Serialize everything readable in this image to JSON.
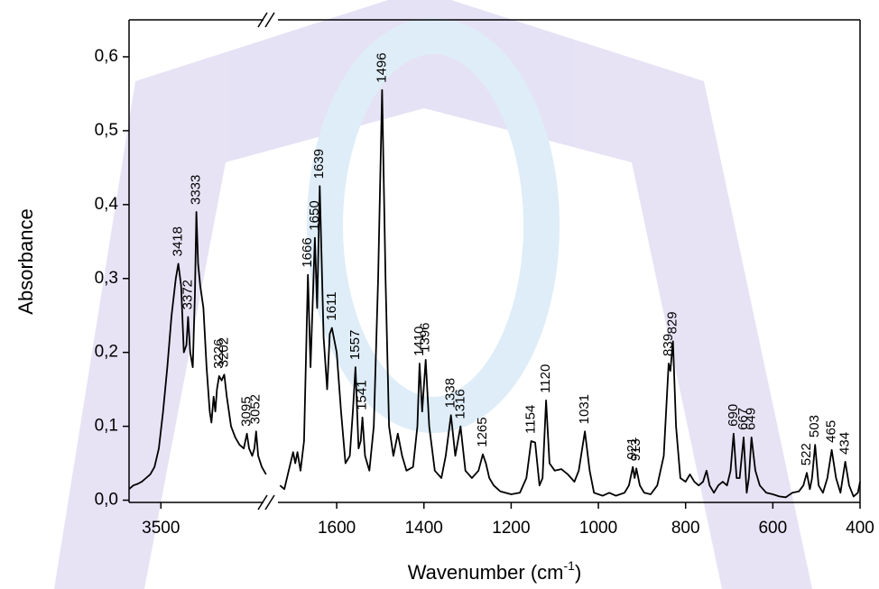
{
  "chart_data": {
    "type": "line",
    "ylabel": "Absorbance",
    "xlabel_parts": [
      "Wavenumber (cm",
      "-1",
      ")"
    ],
    "color": "#000000",
    "ylim": [
      -0.003,
      0.65
    ],
    "yticks": [
      {
        "value": 0,
        "label": "0,0"
      },
      {
        "value": 0.1,
        "label": "0,1"
      },
      {
        "value": 0.2,
        "label": "0,2"
      },
      {
        "value": 0.3,
        "label": "0,3"
      },
      {
        "value": 0.4,
        "label": "0,4"
      },
      {
        "value": 0.5,
        "label": "0,5"
      },
      {
        "value": 0.6,
        "label": "0,6"
      }
    ],
    "x_segments": [
      {
        "xlim": [
          3650,
          3000
        ],
        "xticks": [
          3500
        ]
      },
      {
        "xlim": [
          1743,
          400
        ],
        "xticks": [
          1600,
          1400,
          1200,
          1000,
          800,
          600,
          400
        ]
      }
    ],
    "x": [
      3650,
      3630,
      3610,
      3590,
      3570,
      3550,
      3530,
      3510,
      3490,
      3470,
      3450,
      3430,
      3418,
      3405,
      3392,
      3380,
      3372,
      3362,
      3350,
      3340,
      3333,
      3325,
      3315,
      3300,
      3285,
      3270,
      3262,
      3252,
      3244,
      3236,
      3226,
      3214,
      3202,
      3190,
      3170,
      3150,
      3130,
      3110,
      3095,
      3085,
      3070,
      3060,
      3052,
      3042,
      3025,
      3005,
      null,
      1730,
      1720,
      1710,
      1700,
      1695,
      1690,
      1683,
      1675,
      1666,
      1660,
      1650,
      1645,
      1639,
      1630,
      1622,
      1616,
      1611,
      1600,
      1590,
      1580,
      1570,
      1563,
      1557,
      1550,
      1545,
      1541,
      1535,
      1525,
      1515,
      1505,
      1496,
      1488,
      1480,
      1470,
      1460,
      1450,
      1440,
      1425,
      1415,
      1410,
      1404,
      1396,
      1388,
      1375,
      1360,
      1350,
      1338,
      1328,
      1316,
      1305,
      1290,
      1275,
      1265,
      1258,
      1250,
      1240,
      1225,
      1200,
      1180,
      1165,
      1154,
      1145,
      1135,
      1128,
      1120,
      1112,
      1100,
      1085,
      1070,
      1055,
      1045,
      1031,
      1020,
      1010,
      990,
      975,
      960,
      940,
      930,
      921,
      917,
      913,
      905,
      895,
      880,
      865,
      850,
      839,
      835,
      829,
      822,
      812,
      800,
      790,
      780,
      770,
      760,
      752,
      745,
      735,
      725,
      715,
      705,
      697,
      690,
      683,
      676,
      667,
      660,
      655,
      649,
      640,
      630,
      615,
      600,
      585,
      570,
      555,
      540,
      530,
      522,
      515,
      510,
      503,
      495,
      485,
      475,
      465,
      455,
      445,
      434,
      425,
      415,
      405,
      400
    ],
    "values": [
      0.015,
      0.02,
      0.022,
      0.025,
      0.03,
      0.035,
      0.045,
      0.07,
      0.12,
      0.18,
      0.25,
      0.3,
      0.32,
      0.29,
      0.2,
      0.21,
      0.248,
      0.2,
      0.18,
      0.28,
      0.39,
      0.32,
      0.29,
      0.26,
      0.18,
      0.12,
      0.105,
      0.14,
      0.12,
      0.15,
      0.168,
      0.162,
      0.17,
      0.14,
      0.1,
      0.085,
      0.075,
      0.07,
      0.09,
      0.07,
      0.06,
      0.07,
      0.093,
      0.06,
      0.045,
      0.035,
      null,
      0.02,
      0.015,
      0.04,
      0.065,
      0.05,
      0.065,
      0.04,
      0.08,
      0.305,
      0.18,
      0.355,
      0.26,
      0.425,
      0.22,
      0.15,
      0.225,
      0.233,
      0.2,
      0.12,
      0.05,
      0.06,
      0.12,
      0.18,
      0.07,
      0.08,
      0.112,
      0.06,
      0.04,
      0.1,
      0.3,
      0.555,
      0.3,
      0.1,
      0.06,
      0.09,
      0.06,
      0.04,
      0.045,
      0.1,
      0.185,
      0.12,
      0.19,
      0.1,
      0.04,
      0.03,
      0.06,
      0.115,
      0.06,
      0.1,
      0.04,
      0.03,
      0.04,
      0.062,
      0.05,
      0.03,
      0.02,
      0.012,
      0.008,
      0.01,
      0.03,
      0.08,
      0.078,
      0.02,
      0.03,
      0.135,
      0.05,
      0.04,
      0.042,
      0.035,
      0.025,
      0.04,
      0.093,
      0.04,
      0.01,
      0.006,
      0.01,
      0.006,
      0.01,
      0.02,
      0.045,
      0.03,
      0.043,
      0.02,
      0.01,
      0.008,
      0.02,
      0.06,
      0.185,
      0.175,
      0.215,
      0.1,
      0.03,
      0.025,
      0.035,
      0.025,
      0.02,
      0.025,
      0.04,
      0.02,
      0.01,
      0.02,
      0.025,
      0.02,
      0.04,
      0.09,
      0.03,
      0.03,
      0.085,
      0.01,
      0.03,
      0.085,
      0.04,
      0.02,
      0.01,
      0.008,
      0.005,
      0.004,
      0.01,
      0.012,
      0.02,
      0.037,
      0.015,
      0.03,
      0.075,
      0.02,
      0.01,
      0.03,
      0.068,
      0.03,
      0.01,
      0.052,
      0.02,
      0.005,
      0.01,
      0.025
    ],
    "peak_labels": [
      3418,
      3372,
      3333,
      3226,
      3202,
      3095,
      3052,
      1666,
      1650,
      1639,
      1611,
      1557,
      1541,
      1496,
      1410,
      1396,
      1338,
      1316,
      1265,
      1154,
      1120,
      1031,
      921,
      913,
      839,
      829,
      690,
      667,
      649,
      522,
      503,
      465,
      434
    ]
  }
}
